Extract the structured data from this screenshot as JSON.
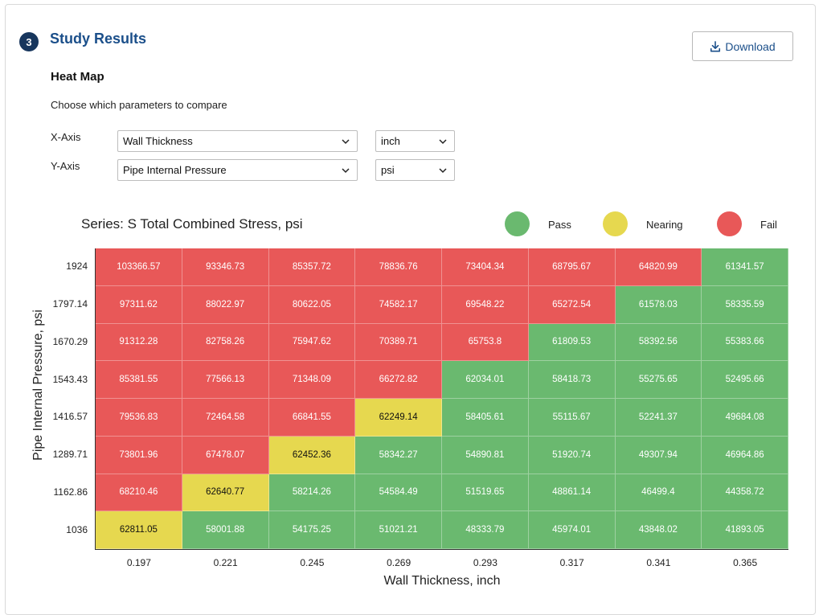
{
  "section": {
    "step_number": "3",
    "title": "Study Results",
    "download_label": "Download"
  },
  "heatmap": {
    "heading": "Heat Map",
    "instructions": "Choose which parameters to compare",
    "x_axis": {
      "label": "X-Axis",
      "parameter": "Wall Thickness",
      "unit": "inch"
    },
    "y_axis": {
      "label": "Y-Axis",
      "parameter": "Pipe Internal Pressure",
      "unit": "psi"
    }
  },
  "legend": [
    {
      "label": "Pass",
      "color": "#6ab96f"
    },
    {
      "label": "Nearing",
      "color": "#e6d84f"
    },
    {
      "label": "Fail",
      "color": "#e85858"
    }
  ],
  "chart_data": {
    "type": "heatmap",
    "title": "Series: S Total Combined Stress, psi",
    "xlabel": "Wall Thickness, inch",
    "ylabel": "Pipe Internal Pressure, psi",
    "x": [
      "0.197",
      "0.221",
      "0.245",
      "0.269",
      "0.293",
      "0.317",
      "0.341",
      "0.365"
    ],
    "y": [
      "1924",
      "1797.14",
      "1670.29",
      "1543.43",
      "1416.57",
      "1289.71",
      "1162.86",
      "1036"
    ],
    "values": [
      [
        "103366.57",
        "93346.73",
        "85357.72",
        "78836.76",
        "73404.34",
        "68795.67",
        "64820.99",
        "61341.57"
      ],
      [
        "97311.62",
        "88022.97",
        "80622.05",
        "74582.17",
        "69548.22",
        "65272.54",
        "61578.03",
        "58335.59"
      ],
      [
        "91312.28",
        "82758.26",
        "75947.62",
        "70389.71",
        "65753.8",
        "61809.53",
        "58392.56",
        "55383.66"
      ],
      [
        "85381.55",
        "77566.13",
        "71348.09",
        "66272.82",
        "62034.01",
        "58418.73",
        "55275.65",
        "52495.66"
      ],
      [
        "79536.83",
        "72464.58",
        "66841.55",
        "62249.14",
        "58405.61",
        "55115.67",
        "52241.37",
        "49684.08"
      ],
      [
        "73801.96",
        "67478.07",
        "62452.36",
        "58342.27",
        "54890.81",
        "51920.74",
        "49307.94",
        "46964.86"
      ],
      [
        "68210.46",
        "62640.77",
        "58214.26",
        "54584.49",
        "51519.65",
        "48861.14",
        "46499.4",
        "44358.72"
      ],
      [
        "62811.05",
        "58001.88",
        "54175.25",
        "51021.21",
        "48333.79",
        "45974.01",
        "43848.02",
        "41893.05"
      ]
    ],
    "status": [
      [
        "Fail",
        "Fail",
        "Fail",
        "Fail",
        "Fail",
        "Fail",
        "Fail",
        "Pass"
      ],
      [
        "Fail",
        "Fail",
        "Fail",
        "Fail",
        "Fail",
        "Fail",
        "Pass",
        "Pass"
      ],
      [
        "Fail",
        "Fail",
        "Fail",
        "Fail",
        "Fail",
        "Pass",
        "Pass",
        "Pass"
      ],
      [
        "Fail",
        "Fail",
        "Fail",
        "Fail",
        "Pass",
        "Pass",
        "Pass",
        "Pass"
      ],
      [
        "Fail",
        "Fail",
        "Fail",
        "Nearing",
        "Pass",
        "Pass",
        "Pass",
        "Pass"
      ],
      [
        "Fail",
        "Fail",
        "Nearing",
        "Pass",
        "Pass",
        "Pass",
        "Pass",
        "Pass"
      ],
      [
        "Fail",
        "Nearing",
        "Pass",
        "Pass",
        "Pass",
        "Pass",
        "Pass",
        "Pass"
      ],
      [
        "Nearing",
        "Pass",
        "Pass",
        "Pass",
        "Pass",
        "Pass",
        "Pass",
        "Pass"
      ]
    ]
  }
}
